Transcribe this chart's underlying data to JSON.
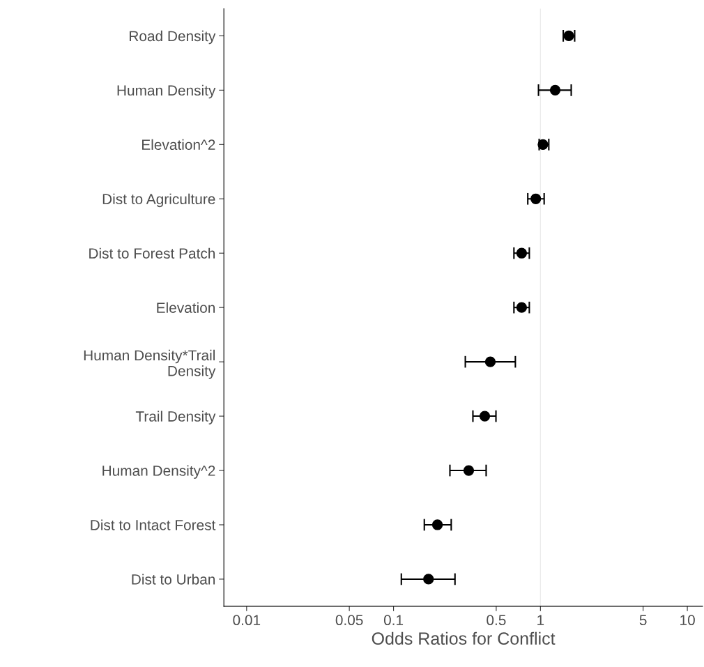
{
  "chart_data": {
    "type": "scatter",
    "xlabel": "Odds Ratios for Conflict",
    "orientation": "horizontal",
    "categories": [
      "Road Density",
      "Human Density",
      "Elevation^2",
      "Dist to Agriculture",
      "Dist to Forest Patch",
      "Elevation",
      "Human Density*Trail\nDensity",
      "Trail Density",
      "Human Density^2",
      "Dist to Intact Forest",
      "Dist to Urban"
    ],
    "values": [
      1.56,
      1.26,
      1.04,
      0.93,
      0.745,
      0.745,
      0.456,
      0.418,
      0.325,
      0.199,
      0.173
    ],
    "errors": [
      [
        1.43,
        1.71
      ],
      [
        0.97,
        1.62
      ],
      [
        0.98,
        1.14
      ],
      [
        0.82,
        1.06
      ],
      [
        0.66,
        0.84
      ],
      [
        0.66,
        0.84
      ],
      [
        0.308,
        0.675
      ],
      [
        0.347,
        0.498
      ],
      [
        0.242,
        0.427
      ],
      [
        0.162,
        0.247
      ],
      [
        0.113,
        0.262
      ]
    ],
    "color": "#000000",
    "log": "x",
    "xlim": [
      0.007,
      12.7
    ],
    "xticks": [
      0.01,
      0.05,
      0.1,
      0.5,
      1,
      5,
      10
    ],
    "ref_lines": [
      {
        "axis": "x",
        "value": 1,
        "color": "#ebebeb"
      }
    ],
    "grid": false,
    "marker": "circle"
  }
}
